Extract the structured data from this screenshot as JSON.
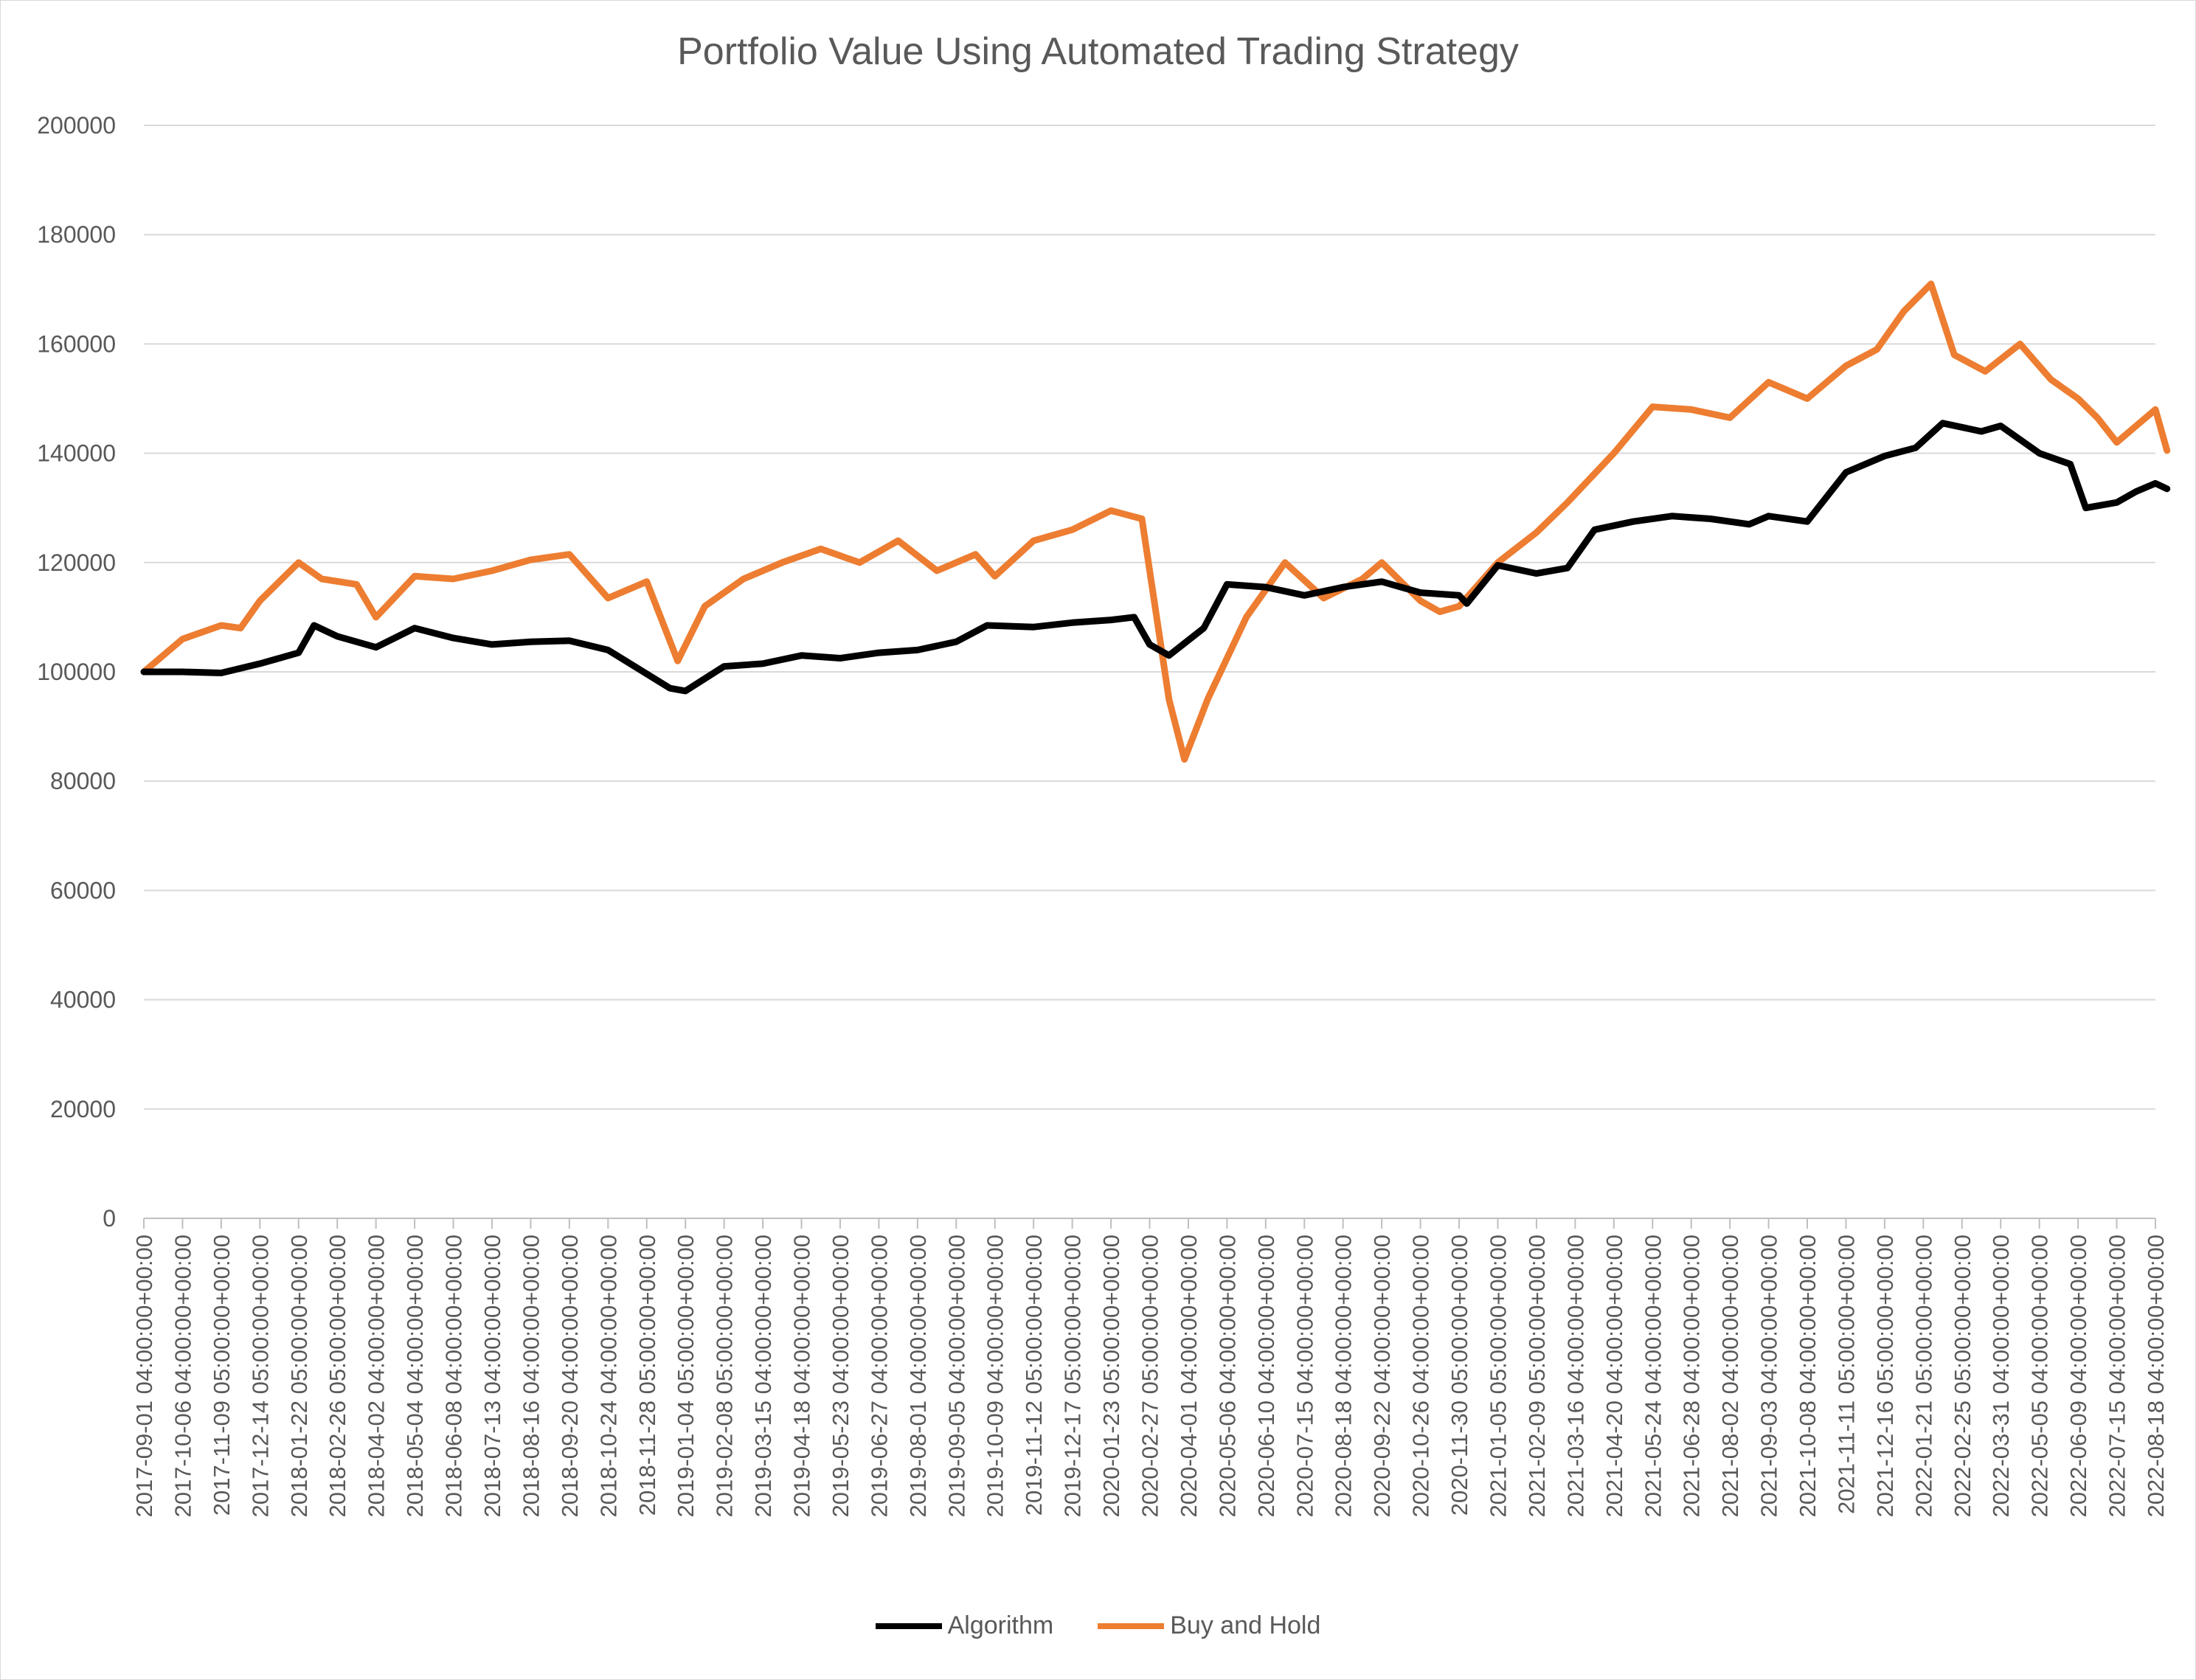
{
  "chart_data": {
    "type": "line",
    "title": "Portfolio Value Using Automated Trading Strategy",
    "xlabel": "",
    "ylabel": "",
    "ylim": [
      0,
      200000
    ],
    "yticks": [
      0,
      20000,
      40000,
      60000,
      80000,
      100000,
      120000,
      140000,
      160000,
      180000,
      200000
    ],
    "x_tick_labels": [
      "2017-09-01 04:00:00+00:00",
      "2017-10-06 04:00:00+00:00",
      "2017-11-09 05:00:00+00:00",
      "2017-12-14 05:00:00+00:00",
      "2018-01-22 05:00:00+00:00",
      "2018-02-26 05:00:00+00:00",
      "2018-04-02 04:00:00+00:00",
      "2018-05-04 04:00:00+00:00",
      "2018-06-08 04:00:00+00:00",
      "2018-07-13 04:00:00+00:00",
      "2018-08-16 04:00:00+00:00",
      "2018-09-20 04:00:00+00:00",
      "2018-10-24 04:00:00+00:00",
      "2018-11-28 05:00:00+00:00",
      "2019-01-04 05:00:00+00:00",
      "2019-02-08 05:00:00+00:00",
      "2019-03-15 04:00:00+00:00",
      "2019-04-18 04:00:00+00:00",
      "2019-05-23 04:00:00+00:00",
      "2019-06-27 04:00:00+00:00",
      "2019-08-01 04:00:00+00:00",
      "2019-09-05 04:00:00+00:00",
      "2019-10-09 04:00:00+00:00",
      "2019-11-12 05:00:00+00:00",
      "2019-12-17 05:00:00+00:00",
      "2020-01-23 05:00:00+00:00",
      "2020-02-27 05:00:00+00:00",
      "2020-04-01 04:00:00+00:00",
      "2020-05-06 04:00:00+00:00",
      "2020-06-10 04:00:00+00:00",
      "2020-07-15 04:00:00+00:00",
      "2020-08-18 04:00:00+00:00",
      "2020-09-22 04:00:00+00:00",
      "2020-10-26 04:00:00+00:00",
      "2020-11-30 05:00:00+00:00",
      "2021-01-05 05:00:00+00:00",
      "2021-02-09 05:00:00+00:00",
      "2021-03-16 04:00:00+00:00",
      "2021-04-20 04:00:00+00:00",
      "2021-05-24 04:00:00+00:00",
      "2021-06-28 04:00:00+00:00",
      "2021-08-02 04:00:00+00:00",
      "2021-09-03 04:00:00+00:00",
      "2021-10-08 04:00:00+00:00",
      "2021-11-11 05:00:00+00:00",
      "2021-12-16 05:00:00+00:00",
      "2022-01-21 05:00:00+00:00",
      "2022-02-25 05:00:00+00:00",
      "2022-03-31 04:00:00+00:00",
      "2022-05-05 04:00:00+00:00",
      "2022-06-09 04:00:00+00:00",
      "2022-07-15 04:00:00+00:00",
      "2022-08-18 04:00:00+00:00"
    ],
    "grid": true,
    "legend_position": "bottom",
    "series": [
      {
        "name": "Algorithm",
        "color": "#000000",
        "values": [
          100000,
          100000,
          99800,
          101500,
          103500,
          108500,
          106500,
          104500,
          108000,
          106200,
          105000,
          105500,
          105700,
          104000,
          97000,
          96500,
          101000,
          101500,
          103000,
          102500,
          103500,
          104000,
          105500,
          108500,
          108200,
          109000,
          109500,
          110000,
          105000,
          103000,
          108000,
          116000,
          115500,
          114000,
          115500,
          116500,
          114500,
          114000,
          112500,
          119500,
          118000,
          119000,
          126000,
          127500,
          128500,
          128000,
          127000,
          128500,
          127500,
          136500,
          139500,
          141000,
          145500,
          144000,
          145000,
          140000,
          138000,
          130000,
          131000,
          133000,
          134500,
          133500
        ],
        "x_index": [
          0,
          1,
          2,
          3,
          4,
          4.4,
          5,
          6,
          7,
          8,
          9,
          10,
          11,
          12,
          13.6,
          14,
          15,
          16,
          17,
          18,
          19,
          20,
          21,
          21.8,
          23,
          24,
          25,
          25.6,
          26,
          26.5,
          27.4,
          28,
          29,
          30,
          31,
          32,
          33,
          34,
          34.2,
          35,
          36,
          36.8,
          37.5,
          38.5,
          39.5,
          40.5,
          41.5,
          42,
          43,
          44,
          45,
          45.8,
          46.5,
          47.5,
          48,
          49,
          49.8,
          50.2,
          51,
          51.5,
          52,
          52.3
        ]
      },
      {
        "name": "Buy and Hold",
        "color": "#ED7D31",
        "values": [
          100000,
          106000,
          108500,
          108000,
          113000,
          120000,
          117000,
          116000,
          110000,
          117500,
          117000,
          118500,
          120500,
          121500,
          113500,
          116500,
          102000,
          112000,
          117000,
          120000,
          122500,
          120000,
          124000,
          118500,
          121500,
          117500,
          124000,
          126000,
          129500,
          128000,
          95000,
          84000,
          95000,
          110000,
          120000,
          113500,
          117000,
          120000,
          113000,
          111000,
          112000,
          120000,
          125500,
          131000,
          140000,
          148500,
          148000,
          146500,
          153000,
          150000,
          156000,
          159000,
          166000,
          171000,
          158000,
          155000,
          160000,
          153500,
          150000,
          146500,
          142000,
          145000,
          148000,
          140500
        ],
        "x_index": [
          0,
          1,
          2,
          2.5,
          3,
          4,
          4.6,
          5.5,
          6,
          7,
          8,
          9,
          10,
          11,
          12,
          13,
          13.8,
          14.5,
          15.5,
          16.5,
          17.5,
          18.5,
          19.5,
          20.5,
          21.5,
          22,
          23,
          24,
          25,
          25.8,
          26.5,
          26.9,
          27.5,
          28.5,
          29.5,
          30.5,
          31.5,
          32,
          33,
          33.5,
          34,
          35,
          36,
          36.8,
          38,
          39,
          40,
          41,
          42,
          43,
          44,
          44.8,
          45.5,
          46.2,
          46.8,
          47.6,
          48.5,
          49.3,
          50,
          50.5,
          51,
          51.5,
          52,
          52.3
        ]
      }
    ]
  }
}
